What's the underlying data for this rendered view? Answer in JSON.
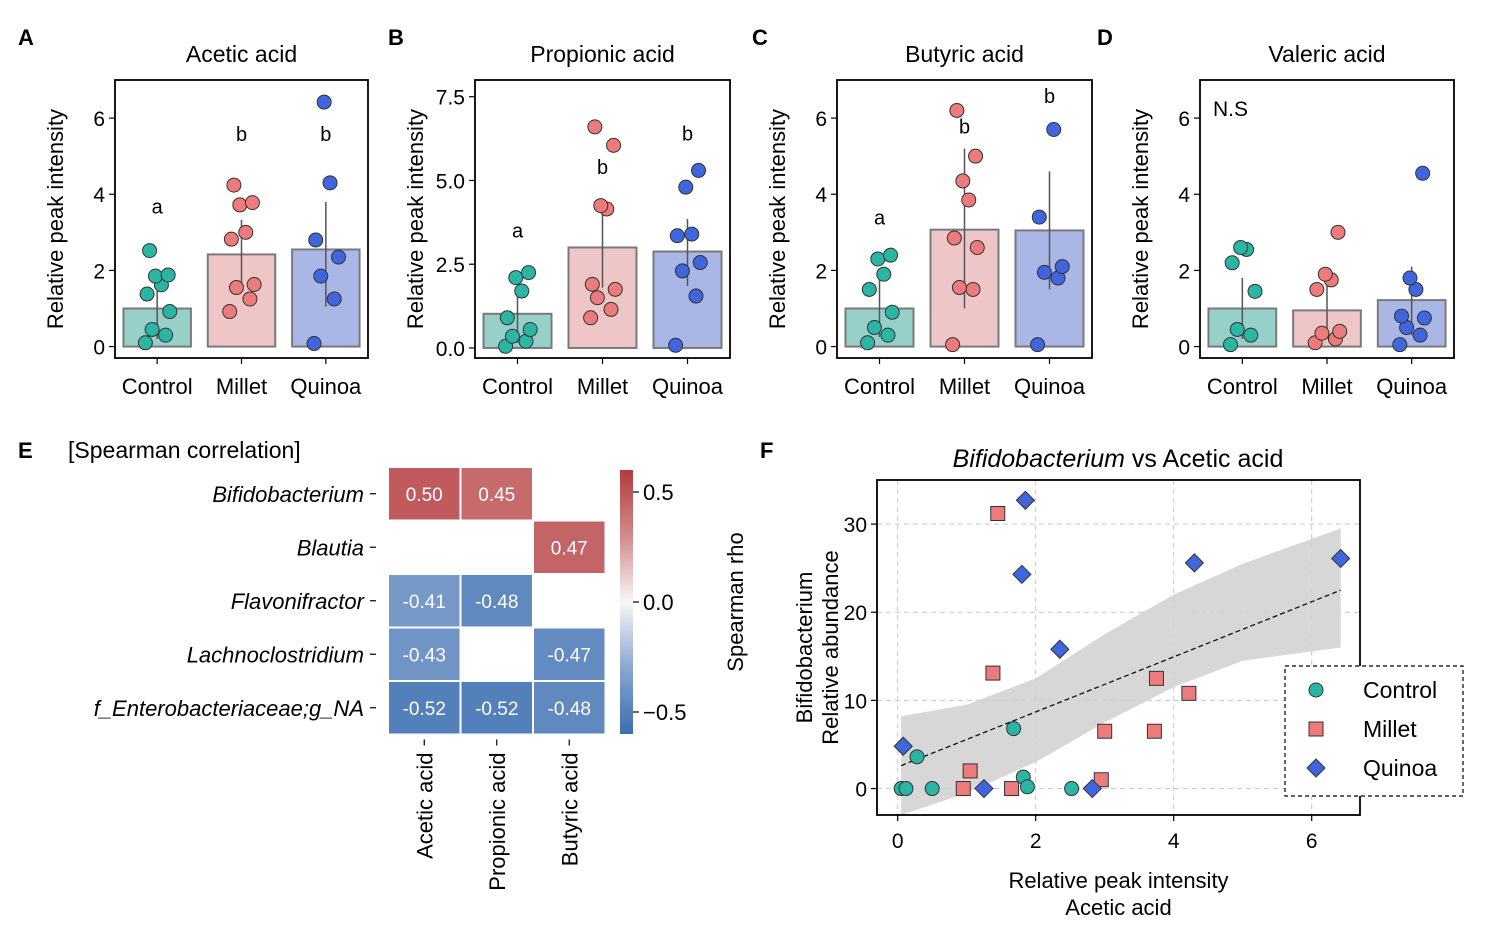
{
  "figure": {
    "colors": {
      "control": "#2ab5a5",
      "millet": "#ee7b7b",
      "quinoa": "#4066dd"
    },
    "bar_colors": {
      "control": "#97d0c9",
      "millet": "#eec6c7",
      "quinoa": "#a9b6e6"
    }
  },
  "chart_data": [
    {
      "type": "bar",
      "panel": "A",
      "title": "Acetic acid",
      "ylabel": "Relative peak intensity",
      "categories": [
        "Control",
        "Millet",
        "Quinoa"
      ],
      "ylim": [
        -0.3,
        7.0
      ],
      "yticks": [
        0,
        2,
        4,
        6
      ],
      "ytick_labels": [
        "0",
        "2",
        "4",
        "6"
      ],
      "means": [
        1.0,
        2.42,
        2.55
      ],
      "sd_upper": [
        1.85,
        3.33,
        3.8
      ],
      "sd_lower": [
        0.2,
        1.6,
        1.05
      ],
      "points": [
        [
          0.1,
          0.3,
          0.45,
          0.92,
          1.38,
          1.62,
          1.85,
          1.88,
          2.52
        ],
        [
          0.92,
          1.25,
          1.55,
          1.63,
          2.82,
          3.0,
          3.72,
          3.78,
          4.24
        ],
        [
          0.08,
          1.25,
          1.85,
          2.35,
          2.8,
          4.3,
          6.42
        ]
      ],
      "annotations": [
        "a",
        "b",
        "b"
      ],
      "annotation_y": [
        3.5,
        5.4,
        5.4
      ],
      "note": ""
    },
    {
      "type": "bar",
      "panel": "B",
      "title": "Propionic acid",
      "ylabel": "Relative peak intensity",
      "categories": [
        "Control",
        "Millet",
        "Quinoa"
      ],
      "ylim": [
        -0.3,
        8.0
      ],
      "yticks": [
        0,
        2.5,
        5.0,
        7.5
      ],
      "ytick_labels": [
        "0.0",
        "2.5",
        "5.0",
        "7.5"
      ],
      "means": [
        1.02,
        3.0,
        2.88
      ],
      "sd_upper": [
        1.95,
        4.2,
        3.85
      ],
      "sd_lower": [
        0.15,
        1.8,
        1.85
      ],
      "points": [
        [
          0.05,
          0.2,
          0.35,
          0.55,
          0.9,
          1.7,
          2.1,
          2.25
        ],
        [
          0.9,
          1.15,
          1.5,
          1.75,
          1.9,
          4.15,
          4.25,
          6.05,
          6.6
        ],
        [
          0.08,
          1.55,
          2.3,
          2.55,
          3.35,
          3.4,
          4.8,
          5.3
        ]
      ],
      "annotations": [
        "a",
        "b",
        "b"
      ],
      "annotation_y": [
        3.3,
        5.2,
        6.2
      ],
      "note": ""
    },
    {
      "type": "bar",
      "panel": "C",
      "title": "Butyric acid",
      "ylabel": "Relative peak intensity",
      "categories": [
        "Control",
        "Millet",
        "Quinoa"
      ],
      "ylim": [
        -0.3,
        7.0
      ],
      "yticks": [
        0,
        2,
        4,
        6
      ],
      "ytick_labels": [
        "0",
        "2",
        "4",
        "6"
      ],
      "means": [
        1.0,
        3.07,
        3.05
      ],
      "sd_upper": [
        1.8,
        5.2,
        4.6
      ],
      "sd_lower": [
        0.25,
        1.0,
        1.5
      ],
      "points": [
        [
          0.1,
          0.3,
          0.5,
          0.9,
          1.5,
          1.9,
          2.3,
          2.4
        ],
        [
          0.05,
          1.5,
          1.55,
          2.6,
          2.85,
          3.85,
          4.35,
          5.0,
          6.2
        ],
        [
          0.05,
          1.8,
          1.95,
          2.1,
          3.4,
          5.7
        ]
      ],
      "annotations": [
        "a",
        "b",
        "b"
      ],
      "annotation_y": [
        3.2,
        5.6,
        6.4
      ],
      "note": ""
    },
    {
      "type": "bar",
      "panel": "D",
      "title": "Valeric acid",
      "ylabel": "Relative peak intensity",
      "categories": [
        "Control",
        "Millet",
        "Quinoa"
      ],
      "ylim": [
        -0.3,
        7.0
      ],
      "yticks": [
        0,
        2,
        4,
        6
      ],
      "ytick_labels": [
        "0",
        "2",
        "4",
        "6"
      ],
      "means": [
        1.0,
        0.95,
        1.22
      ],
      "sd_upper": [
        1.8,
        1.7,
        2.1
      ],
      "sd_lower": [
        0.2,
        0.2,
        0.3
      ],
      "points": [
        [
          0.05,
          0.3,
          0.45,
          1.45,
          2.2,
          2.55,
          2.6
        ],
        [
          0.1,
          0.2,
          0.35,
          0.4,
          1.5,
          1.75,
          1.9,
          3.0
        ],
        [
          0.05,
          0.3,
          0.5,
          0.75,
          0.8,
          1.5,
          1.8,
          4.55
        ]
      ],
      "annotations": [
        "",
        "",
        ""
      ],
      "annotation_y": [
        0,
        0,
        0
      ],
      "note": "N.S"
    },
    {
      "type": "heatmap",
      "panel": "E",
      "title": "[Spearman correlation]",
      "rows": [
        "Bifidobacterium",
        "Blautia",
        "Flavonifractor",
        "Lachnoclostridium",
        "f_Enterobacteriaceae;g_NA"
      ],
      "columns": [
        "Acetic acid",
        "Propionic acid",
        "Butyric acid"
      ],
      "values": [
        [
          0.5,
          0.45,
          null
        ],
        [
          null,
          null,
          0.47
        ],
        [
          -0.41,
          -0.48,
          null
        ],
        [
          -0.43,
          null,
          -0.47
        ],
        [
          -0.52,
          -0.52,
          -0.48
        ]
      ],
      "value_labels": [
        [
          "0.50",
          "0.45",
          ""
        ],
        [
          "",
          "",
          "0.47"
        ],
        [
          "-0.41",
          "-0.48",
          ""
        ],
        [
          "-0.43",
          "",
          "-0.47"
        ],
        [
          "-0.52",
          "-0.52",
          "-0.48"
        ]
      ],
      "colorbar": {
        "label": "Spearman rho",
        "range": [
          -0.6,
          0.6
        ],
        "ticks": [
          0.5,
          0.0,
          -0.5
        ],
        "tick_labels": [
          "0.5",
          "0.0",
          "−0.5"
        ]
      }
    },
    {
      "type": "scatter",
      "panel": "F",
      "title_italic": "Bifidobacterium",
      "title_rest": " vs Acetic acid",
      "xlabel": [
        "Relative peak intensity",
        "Acetic acid"
      ],
      "ylabel": [
        "Bifidobacterium",
        "Relative abundance"
      ],
      "xlim": [
        -0.3,
        6.7
      ],
      "ylim": [
        -3,
        35
      ],
      "xticks": [
        0,
        2,
        4,
        6
      ],
      "yticks": [
        0,
        10,
        20,
        30
      ],
      "series": [
        {
          "name": "Control",
          "marker": "circle",
          "x": [
            0.05,
            0.12,
            0.28,
            0.5,
            1.68,
            1.82,
            1.88,
            2.52
          ],
          "y": [
            0,
            0,
            3.6,
            0,
            6.8,
            1.3,
            0.2,
            0
          ]
        },
        {
          "name": "Millet",
          "marker": "square",
          "x": [
            0.95,
            1.05,
            1.38,
            1.45,
            1.65,
            2.95,
            3.0,
            3.72,
            3.75,
            4.22
          ],
          "y": [
            0,
            2.0,
            13.1,
            31.2,
            0,
            1.0,
            6.5,
            6.5,
            12.5,
            10.8
          ]
        },
        {
          "name": "Quinoa",
          "marker": "diamond",
          "x": [
            0.08,
            1.25,
            1.8,
            1.85,
            2.35,
            2.82,
            4.3,
            6.42
          ],
          "y": [
            4.8,
            0,
            24.3,
            32.7,
            15.8,
            0,
            25.6,
            26.1
          ]
        }
      ],
      "fit_line": {
        "x": [
          0.05,
          6.42
        ],
        "y": [
          2.6,
          22.5
        ]
      },
      "ci_band": {
        "x": [
          0.05,
          1.0,
          2.0,
          3.0,
          4.0,
          5.0,
          6.42
        ],
        "upper": [
          8.2,
          9.5,
          12.5,
          17.5,
          22.0,
          25.5,
          29.5
        ],
        "lower": [
          -3.0,
          -0.5,
          3.0,
          7.5,
          11.5,
          14.5,
          16.0
        ]
      },
      "legend": [
        "Control",
        "Millet",
        "Quinoa"
      ]
    }
  ],
  "panel_letters": [
    "A",
    "B",
    "C",
    "D",
    "E",
    "F"
  ]
}
